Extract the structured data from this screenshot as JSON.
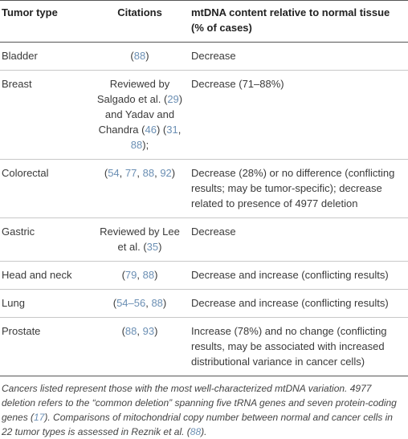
{
  "table": {
    "header": [
      "Tumor type",
      "Citations",
      "mtDNA content relative to normal tissue (% of cases)"
    ],
    "rows": [
      [
        "Bladder",
        [
          "(",
          "88",
          ")"
        ],
        "Decrease"
      ],
      [
        "Breast",
        [
          "Reviewed by Salgado et al. (",
          "29",
          ") and Yadav and Chandra (",
          "46",
          ") (",
          "31",
          ", ",
          "88",
          ");"
        ],
        "Decrease (71–88%)"
      ],
      [
        "Colorectal",
        [
          "(",
          "54",
          ", ",
          "77",
          ", ",
          "88",
          ", ",
          "92",
          ")"
        ],
        "Decrease (28%) or no difference (conflicting results; may be tumor-specific); decrease related to presence of 4977 deletion"
      ],
      [
        "Gastric",
        [
          "Reviewed by Lee et al. (",
          "35",
          ")"
        ],
        "Decrease"
      ],
      [
        "Head and neck",
        [
          "(",
          "79",
          ", ",
          "88",
          ")"
        ],
        "Decrease and increase (conflicting results)"
      ],
      [
        "Lung",
        [
          "(",
          "54–56",
          ", ",
          "88",
          ")"
        ],
        "Decrease and increase (conflicting results)"
      ],
      [
        "Prostate",
        [
          "(",
          "88",
          ", ",
          "93",
          ")"
        ],
        "Increase (78%) and no change (conflicting results, may be associated with increased distributional variance in cancer cells)"
      ]
    ],
    "footnote": [
      "Cancers listed represent those with the most well-characterized mtDNA variation. 4977 deletion refers to the “common deletion” spanning five tRNA genes and seven protein-coding genes (",
      "17",
      "). Comparisons of mitochondrial copy number between normal and cancer cells in 22 tumor types is assessed in Reznik et al. (",
      "88",
      ")."
    ]
  }
}
